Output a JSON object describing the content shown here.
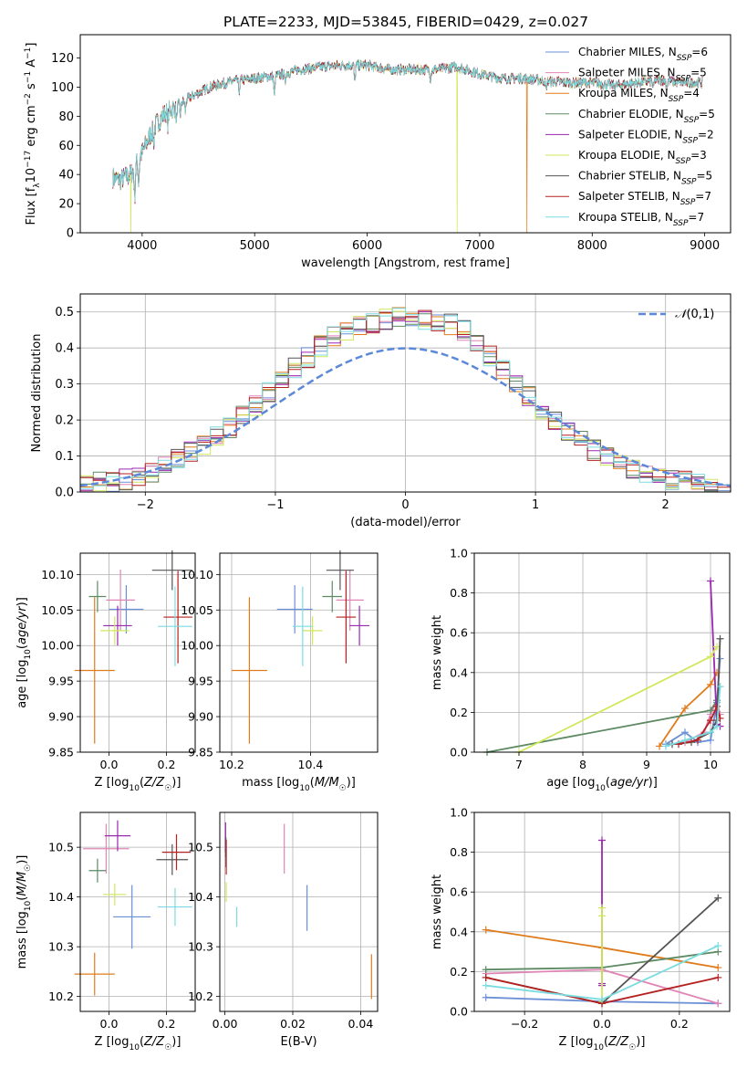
{
  "figure": {
    "title": "PLATE=2233, MJD=53845, FIBERID=0429, z=0.027"
  },
  "chart_data": [
    {
      "id": "spectrum",
      "type": "line",
      "xlabel": "wavelength [Angstrom, rest frame]",
      "ylabel": "Flux [f_λ 10^-17 erg cm^-2 s^-1 A^-1]",
      "xlim": [
        3450,
        9230
      ],
      "ylim": [
        0,
        136
      ],
      "xticks": [
        4000,
        5000,
        6000,
        7000,
        8000,
        9000
      ],
      "yticks": [
        0,
        20,
        40,
        60,
        80,
        100,
        120
      ],
      "grid": false,
      "legend_position": "top-right",
      "series": [
        {
          "name": "Chabrier MILES, N_SSP=6",
          "color": "#6a8fd6"
        },
        {
          "name": "Salpeter MILES, N_SSP=5",
          "color": "#e085b5"
        },
        {
          "name": "Kroupa MILES, N_SSP=4",
          "color": "#e07b1c"
        },
        {
          "name": "Chabrier ELODIE, N_SSP=5",
          "color": "#5d8a63"
        },
        {
          "name": "Salpeter ELODIE, N_SSP=2",
          "color": "#9a28b0"
        },
        {
          "name": "Kroupa ELODIE, N_SSP=3",
          "color": "#d0e85a"
        },
        {
          "name": "Chabrier STELIB, N_SSP=5",
          "color": "#555555"
        },
        {
          "name": "Salpeter STELIB, N_SSP=7",
          "color": "#b52020"
        },
        {
          "name": "Kroupa STELIB, N_SSP=7",
          "color": "#7adce0"
        }
      ],
      "continuum": {
        "x": [
          3740,
          3800,
          3900,
          4000,
          4100,
          4200,
          4400,
          4600,
          4800,
          5000,
          5200,
          5400,
          5600,
          5800,
          6000,
          6200,
          6400,
          6600,
          6800,
          7000,
          7200,
          7400,
          7600,
          7800,
          8000,
          8200,
          8400,
          8600,
          8800,
          8980
        ],
        "y": [
          38,
          36,
          40,
          55,
          72,
          82,
          92,
          100,
          104,
          106,
          108,
          112,
          114,
          115,
          115,
          112,
          112,
          112,
          114,
          109,
          106,
          106,
          104,
          103,
          103,
          101,
          103,
          105,
          103,
          103
        ]
      },
      "absorption_lines": [
        {
          "x": 3934,
          "depth": 20
        },
        {
          "x": 3969,
          "depth": 15
        },
        {
          "x": 4102,
          "depth": 10
        },
        {
          "x": 4227,
          "depth": 8
        },
        {
          "x": 4304,
          "depth": 12
        },
        {
          "x": 4340,
          "depth": 8
        },
        {
          "x": 4384,
          "depth": 8
        },
        {
          "x": 4861,
          "depth": 8
        },
        {
          "x": 5175,
          "depth": 14
        },
        {
          "x": 5270,
          "depth": 6
        },
        {
          "x": 5890,
          "depth": 12
        },
        {
          "x": 6563,
          "depth": 6
        },
        {
          "x": 7590,
          "depth": 6
        },
        {
          "x": 8542,
          "depth": 6
        },
        {
          "x": 8662,
          "depth": 5
        }
      ],
      "dropouts": [
        {
          "x": 3900,
          "series": "Kroupa ELODIE, N_SSP=3"
        },
        {
          "x": 6800,
          "series": "Kroupa ELODIE, N_SSP=3"
        },
        {
          "x": 7420,
          "series": "Kroupa MILES, N_SSP=4"
        }
      ]
    },
    {
      "id": "residuals",
      "type": "histogram",
      "xlabel": "(data-model)/error",
      "ylabel": "Normed distribution",
      "xlim": [
        -2.5,
        2.5
      ],
      "ylim": [
        0,
        0.55
      ],
      "xticks": [
        -2,
        -1,
        0,
        1,
        2
      ],
      "yticks": [
        0.0,
        0.1,
        0.2,
        0.3,
        0.4,
        0.5
      ],
      "grid": true,
      "legend_position": "top-right",
      "reference_curve": {
        "name": "N(0,1)",
        "mean": 0,
        "sigma": 1,
        "color": "#5b88d8"
      },
      "bin_edges": [
        -2.5,
        -2.4,
        -2.3,
        -2.2,
        -2.1,
        -2.0,
        -1.9,
        -1.8,
        -1.7,
        -1.6,
        -1.5,
        -1.4,
        -1.3,
        -1.2,
        -1.1,
        -1.0,
        -0.9,
        -0.8,
        -0.7,
        -0.6,
        -0.5,
        -0.4,
        -0.3,
        -0.2,
        -0.1,
        0.0,
        0.1,
        0.2,
        0.3,
        0.4,
        0.5,
        0.6,
        0.7,
        0.8,
        0.9,
        1.0,
        1.1,
        1.2,
        1.3,
        1.4,
        1.5,
        1.6,
        1.7,
        1.8,
        1.9,
        2.0,
        2.1,
        2.2,
        2.3,
        2.4,
        2.5
      ],
      "envelope": [
        0.02,
        0.025,
        0.03,
        0.035,
        0.045,
        0.055,
        0.07,
        0.09,
        0.11,
        0.13,
        0.155,
        0.18,
        0.21,
        0.24,
        0.275,
        0.31,
        0.345,
        0.375,
        0.405,
        0.43,
        0.445,
        0.46,
        0.47,
        0.48,
        0.485,
        0.485,
        0.48,
        0.475,
        0.465,
        0.45,
        0.42,
        0.38,
        0.34,
        0.3,
        0.265,
        0.225,
        0.195,
        0.165,
        0.14,
        0.115,
        0.095,
        0.08,
        0.065,
        0.05,
        0.04,
        0.035,
        0.03,
        0.025,
        0.02,
        0.018
      ]
    },
    {
      "id": "age-vs-Z",
      "type": "scatter",
      "xlabel": "Z [log10(Z/Z☉)]",
      "ylabel": "age [log10(age/yr)]",
      "xlim": [
        -0.1,
        0.3
      ],
      "ylim": [
        9.85,
        10.13
      ],
      "xticks": [
        0.0,
        0.2
      ],
      "yticks": [
        9.85,
        9.9,
        9.95,
        10.0,
        10.05,
        10.1
      ],
      "xtick_labels": [
        "0.0",
        "0.2"
      ],
      "ytick_labels": [
        "9.85",
        "9.90",
        "9.95",
        "10.00",
        "10.05",
        "10.10"
      ],
      "grid": true,
      "points": [
        {
          "x": 0.06,
          "y": 10.051,
          "xerr": 0.06,
          "yerr": 0.034,
          "color": "#6a8fd6"
        },
        {
          "x": 0.04,
          "y": 10.064,
          "xerr": 0.05,
          "yerr": 0.043,
          "color": "#e085b5"
        },
        {
          "x": -0.05,
          "y": 9.965,
          "xerr": 0.07,
          "yerr": 0.103,
          "color": "#e07b1c"
        },
        {
          "x": -0.04,
          "y": 10.069,
          "xerr": 0.03,
          "yerr": 0.022,
          "color": "#5d8a63"
        },
        {
          "x": 0.03,
          "y": 10.028,
          "xerr": 0.05,
          "yerr": 0.028,
          "color": "#9a28b0"
        },
        {
          "x": 0.02,
          "y": 10.021,
          "xerr": 0.05,
          "yerr": 0.02,
          "color": "#d0e85a"
        },
        {
          "x": 0.22,
          "y": 10.106,
          "xerr": 0.07,
          "yerr": 0.028,
          "color": "#555555"
        },
        {
          "x": 0.24,
          "y": 10.04,
          "xerr": 0.05,
          "yerr": 0.065,
          "color": "#b52020"
        },
        {
          "x": 0.23,
          "y": 10.027,
          "xerr": 0.06,
          "yerr": 0.056,
          "color": "#7adce0"
        }
      ]
    },
    {
      "id": "age-vs-mass",
      "type": "scatter",
      "xlabel": "mass [log10(M/M☉)]",
      "ylabel": "",
      "xlim": [
        10.17,
        10.57
      ],
      "ylim": [
        9.85,
        10.13
      ],
      "xticks": [
        10.2,
        10.4
      ],
      "yticks": [
        9.85,
        9.9,
        9.95,
        10.0,
        10.05,
        10.1
      ],
      "xtick_labels": [
        "10.2",
        "10.4"
      ],
      "ytick_labels": [
        "9.85",
        "9.90",
        "9.95",
        "10.00",
        "10.05",
        "10.10"
      ],
      "grid": true,
      "points": [
        {
          "x": 10.36,
          "y": 10.051,
          "xerr": 0.045,
          "yerr": 0.034,
          "color": "#6a8fd6"
        },
        {
          "x": 10.5,
          "y": 10.064,
          "xerr": 0.035,
          "yerr": 0.043,
          "color": "#e085b5"
        },
        {
          "x": 10.245,
          "y": 9.965,
          "xerr": 0.045,
          "yerr": 0.103,
          "color": "#e07b1c"
        },
        {
          "x": 10.455,
          "y": 10.069,
          "xerr": 0.025,
          "yerr": 0.022,
          "color": "#5d8a63"
        },
        {
          "x": 10.524,
          "y": 10.028,
          "xerr": 0.025,
          "yerr": 0.028,
          "color": "#9a28b0"
        },
        {
          "x": 10.405,
          "y": 10.021,
          "xerr": 0.025,
          "yerr": 0.02,
          "color": "#d0e85a"
        },
        {
          "x": 10.475,
          "y": 10.106,
          "xerr": 0.035,
          "yerr": 0.028,
          "color": "#555555"
        },
        {
          "x": 10.49,
          "y": 10.04,
          "xerr": 0.025,
          "yerr": 0.065,
          "color": "#b52020"
        },
        {
          "x": 10.38,
          "y": 10.027,
          "xerr": 0.025,
          "yerr": 0.056,
          "color": "#7adce0"
        }
      ]
    },
    {
      "id": "weight-vs-age",
      "type": "line",
      "xlabel": "age [log10(age/yr)]",
      "ylabel": "mass weight",
      "xlim": [
        6.3,
        10.3
      ],
      "ylim": [
        0,
        1.0
      ],
      "xticks": [
        7,
        8,
        9,
        10
      ],
      "yticks": [
        0.0,
        0.2,
        0.4,
        0.6,
        0.8,
        1.0
      ],
      "xtick_labels": [
        "7",
        "8",
        "9",
        "10"
      ],
      "ytick_labels": [
        "0.0",
        "0.2",
        "0.4",
        "0.6",
        "0.8",
        "1.0"
      ],
      "grid": true,
      "series": [
        {
          "color": "#6a8fd6",
          "x": [
            9.3,
            9.6,
            9.8,
            10.0,
            10.1,
            10.15
          ],
          "y": [
            0.04,
            0.1,
            0.05,
            0.06,
            0.25,
            0.47
          ]
        },
        {
          "color": "#e085b5",
          "x": [
            9.4,
            9.6,
            9.9,
            10.0,
            10.1,
            10.15
          ],
          "y": [
            0.04,
            0.05,
            0.1,
            0.19,
            0.26,
            0.19
          ]
        },
        {
          "color": "#e07b1c",
          "x": [
            9.2,
            9.6,
            10.0,
            10.1
          ],
          "y": [
            0.03,
            0.22,
            0.34,
            0.4
          ]
        },
        {
          "color": "#5d8a63",
          "x": [
            6.5,
            10.0,
            10.1,
            10.15
          ],
          "y": [
            0.0,
            0.21,
            0.26,
            0.33
          ]
        },
        {
          "color": "#9a28b0",
          "x": [
            10.0,
            10.1,
            10.15
          ],
          "y": [
            0.86,
            0.14,
            0.13
          ]
        },
        {
          "color": "#d0e85a",
          "x": [
            7.0,
            10.0,
            10.1
          ],
          "y": [
            0.0,
            0.48,
            0.53
          ]
        },
        {
          "color": "#555555",
          "x": [
            9.4,
            9.7,
            10.0,
            10.1,
            10.15
          ],
          "y": [
            0.04,
            0.05,
            0.1,
            0.16,
            0.57
          ]
        },
        {
          "color": "#b52020",
          "x": [
            9.5,
            9.8,
            10.0,
            10.1,
            10.15
          ],
          "y": [
            0.04,
            0.06,
            0.16,
            0.23,
            0.17
          ]
        },
        {
          "color": "#7adce0",
          "x": [
            9.3,
            9.6,
            10.0,
            10.1,
            10.15
          ],
          "y": [
            0.03,
            0.06,
            0.1,
            0.13,
            0.33
          ]
        }
      ]
    },
    {
      "id": "mass-vs-Z",
      "type": "scatter",
      "xlabel": "Z [log10(Z/Z☉)]",
      "ylabel": "mass [log10(M/M☉)]",
      "xlim": [
        -0.1,
        0.3
      ],
      "ylim": [
        10.17,
        10.57
      ],
      "xticks": [
        0.0,
        0.2
      ],
      "yticks": [
        10.2,
        10.3,
        10.4,
        10.5
      ],
      "xtick_labels": [
        "0.0",
        "0.2"
      ],
      "ytick_labels": [
        "10.2",
        "10.3",
        "10.4",
        "10.5"
      ],
      "grid": true,
      "points": [
        {
          "x": 0.08,
          "y": 10.36,
          "xerr": 0.065,
          "yerr": 0.064,
          "color": "#6a8fd6"
        },
        {
          "x": -0.01,
          "y": 10.497,
          "xerr": 0.08,
          "yerr": 0.05,
          "color": "#e085b5"
        },
        {
          "x": -0.05,
          "y": 10.245,
          "xerr": 0.07,
          "yerr": 0.043,
          "color": "#e07b1c"
        },
        {
          "x": -0.04,
          "y": 10.453,
          "xerr": 0.03,
          "yerr": 0.024,
          "color": "#5d8a63"
        },
        {
          "x": 0.03,
          "y": 10.523,
          "xerr": 0.045,
          "yerr": 0.031,
          "color": "#9a28b0"
        },
        {
          "x": 0.02,
          "y": 10.405,
          "xerr": 0.04,
          "yerr": 0.022,
          "color": "#d0e85a"
        },
        {
          "x": 0.22,
          "y": 10.475,
          "xerr": 0.055,
          "yerr": 0.031,
          "color": "#555555"
        },
        {
          "x": 0.235,
          "y": 10.49,
          "xerr": 0.05,
          "yerr": 0.036,
          "color": "#b52020"
        },
        {
          "x": 0.23,
          "y": 10.38,
          "xerr": 0.06,
          "yerr": 0.038,
          "color": "#7adce0"
        }
      ]
    },
    {
      "id": "mass-vs-EBV",
      "type": "scatter",
      "xlabel": "E(B-V)",
      "ylabel": "",
      "xlim": [
        -0.0015,
        0.045
      ],
      "ylim": [
        10.17,
        10.57
      ],
      "xticks": [
        0.0,
        0.02,
        0.04
      ],
      "yticks": [
        10.2,
        10.3,
        10.4,
        10.5
      ],
      "xtick_labels": [
        "0.00",
        "0.02",
        "0.04"
      ],
      "ytick_labels": [
        "10.2",
        "10.3",
        "10.4",
        "10.5"
      ],
      "grid": true,
      "points": [
        {
          "x": 0.0242,
          "y": 10.378,
          "xerr": 0,
          "yerr": 0.046,
          "color": "#6a8fd6"
        },
        {
          "x": 0.0175,
          "y": 10.497,
          "xerr": 0,
          "yerr": 0.05,
          "color": "#e085b5"
        },
        {
          "x": 0.0432,
          "y": 10.24,
          "xerr": 0,
          "yerr": 0.045,
          "color": "#e07b1c"
        },
        {
          "x": 0.0002,
          "y": 10.5,
          "xerr": 0,
          "yerr": 0.02,
          "color": "#5d8a63"
        },
        {
          "x": 0.0002,
          "y": 10.52,
          "xerr": 0,
          "yerr": 0.03,
          "color": "#9a28b0"
        },
        {
          "x": 0.0004,
          "y": 10.41,
          "xerr": 0,
          "yerr": 0.02,
          "color": "#d0e85a"
        },
        {
          "x": 0.0003,
          "y": 10.49,
          "xerr": 0,
          "yerr": 0.03,
          "color": "#555555"
        },
        {
          "x": 0.0004,
          "y": 10.48,
          "xerr": 0,
          "yerr": 0.035,
          "color": "#b52020"
        },
        {
          "x": 0.0035,
          "y": 10.36,
          "xerr": 0,
          "yerr": 0.02,
          "color": "#7adce0"
        }
      ]
    },
    {
      "id": "weight-vs-Z",
      "type": "line",
      "xlabel": "Z [log10(Z/Z☉)]",
      "ylabel": "mass weight",
      "xlim": [
        -0.33,
        0.33
      ],
      "ylim": [
        0,
        1.0
      ],
      "xticks": [
        -0.2,
        0.0,
        0.2
      ],
      "yticks": [
        0.0,
        0.2,
        0.4,
        0.6,
        0.8,
        1.0
      ],
      "xtick_labels": [
        "−0.2",
        "0.0",
        "0.2"
      ],
      "ytick_labels": [
        "0.0",
        "0.2",
        "0.4",
        "0.6",
        "0.8",
        "1.0"
      ],
      "grid": true,
      "series": [
        {
          "color": "#6a8fd6",
          "x": [
            -0.3,
            0.0,
            0.3
          ],
          "y": [
            0.07,
            0.05,
            0.04
          ]
        },
        {
          "color": "#e085b5",
          "x": [
            -0.3,
            0.0,
            0.3
          ],
          "y": [
            0.19,
            0.21,
            0.04
          ]
        },
        {
          "color": "#e07b1c",
          "x": [
            -0.3,
            0.0,
            0.3
          ],
          "y": [
            0.41,
            0.32,
            0.22
          ]
        },
        {
          "color": "#5d8a63",
          "x": [
            -0.3,
            0.0,
            0.3
          ],
          "y": [
            0.21,
            0.22,
            0.3
          ]
        },
        {
          "color": "#9a28b0",
          "x": [
            0.0,
            0.0,
            0.0
          ],
          "y": [
            0.14,
            0.86,
            0.13
          ]
        },
        {
          "color": "#d0e85a",
          "x": [
            0.0,
            0.0,
            0.0
          ],
          "y": [
            0.52,
            0.48,
            0.05
          ]
        },
        {
          "color": "#555555",
          "x": [
            -0.3,
            0.0,
            0.3
          ],
          "y": [
            0.17,
            0.04,
            0.57
          ]
        },
        {
          "color": "#b52020",
          "x": [
            -0.3,
            0.0,
            0.3
          ],
          "y": [
            0.17,
            0.04,
            0.17
          ]
        },
        {
          "color": "#7adce0",
          "x": [
            -0.3,
            0.0,
            0.3
          ],
          "y": [
            0.13,
            0.06,
            0.33
          ]
        }
      ]
    }
  ]
}
